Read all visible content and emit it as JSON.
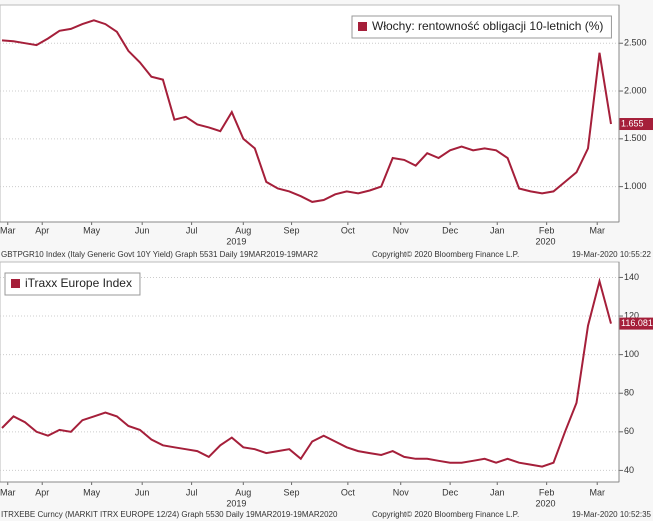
{
  "chart_data": [
    {
      "type": "line",
      "series": [
        {
          "name": "Włochy: rentowność obligacji 10-letnich (%)",
          "color": "#a51f3a",
          "values": [
            2.53,
            2.52,
            2.5,
            2.48,
            2.55,
            2.63,
            2.65,
            2.7,
            2.74,
            2.7,
            2.62,
            2.42,
            2.3,
            2.15,
            2.12,
            1.7,
            1.73,
            1.65,
            1.62,
            1.58,
            1.78,
            1.5,
            1.4,
            1.05,
            0.98,
            0.95,
            0.9,
            0.84,
            0.86,
            0.92,
            0.95,
            0.93,
            0.96,
            1.0,
            1.3,
            1.28,
            1.22,
            1.35,
            1.3,
            1.38,
            1.42,
            1.38,
            1.4,
            1.38,
            1.3,
            0.98,
            0.95,
            0.93,
            0.95,
            1.05,
            1.15,
            1.4,
            2.4,
            1.655
          ]
        }
      ],
      "last_value": 1.655,
      "xlim": [
        0,
        53
      ],
      "xticks": [
        {
          "value": 0.5,
          "label": "Mar"
        },
        {
          "value": 3.5,
          "label": "Apr"
        },
        {
          "value": 7.8,
          "label": "May"
        },
        {
          "value": 12.2,
          "label": "Jun"
        },
        {
          "value": 16.5,
          "label": "Jul"
        },
        {
          "value": 21,
          "label": "Aug"
        },
        {
          "value": 25.2,
          "label": "Sep"
        },
        {
          "value": 30.1,
          "label": "Oct"
        },
        {
          "value": 34.7,
          "label": "Nov"
        },
        {
          "value": 39,
          "label": "Dec"
        },
        {
          "value": 43.1,
          "label": "Jan"
        },
        {
          "value": 47.4,
          "label": "Feb"
        },
        {
          "value": 51.8,
          "label": "Mar"
        }
      ],
      "year_labels": [
        {
          "value": 20.4,
          "label": "2019"
        },
        {
          "value": 47.3,
          "label": "2020"
        }
      ],
      "ylim": [
        0.63,
        2.9
      ],
      "yticks": [
        {
          "value": 1,
          "label": "1.000"
        },
        {
          "value": 1.5,
          "label": "1.500"
        },
        {
          "value": 2,
          "label": "2.000"
        },
        {
          "value": 2.5,
          "label": "2.500"
        }
      ],
      "grid": true,
      "legend": "top-right",
      "source": "GBTPGR10 Index (Italy Generic Govt 10Y Yield) Graph 5531   Daily 19MAR2019-19MAR2",
      "copyright": "Copyright© 2020 Bloomberg Finance L.P.",
      "timestamp": "19-Mar-2020 10:55:22"
    },
    {
      "type": "line",
      "series": [
        {
          "name": "iTraxx Europe Index",
          "color": "#a51f3a",
          "values": [
            62,
            68,
            65,
            60,
            58,
            61,
            60,
            66,
            68,
            70,
            68,
            63,
            61,
            56,
            53,
            52,
            51,
            50,
            47,
            53,
            57,
            52,
            51,
            49,
            50,
            51,
            46,
            55,
            58,
            55,
            52,
            50,
            49,
            48,
            50,
            47,
            46,
            46,
            45,
            44,
            44,
            45,
            46,
            44,
            46,
            44,
            43,
            42,
            44,
            60,
            75,
            115,
            138,
            116.081
          ]
        }
      ],
      "last_value": 116.081,
      "xlim": [
        0,
        53
      ],
      "xticks": [
        {
          "value": 0.5,
          "label": "Mar"
        },
        {
          "value": 3.5,
          "label": "Apr"
        },
        {
          "value": 7.8,
          "label": "May"
        },
        {
          "value": 12.2,
          "label": "Jun"
        },
        {
          "value": 16.5,
          "label": "Jul"
        },
        {
          "value": 21,
          "label": "Aug"
        },
        {
          "value": 25.2,
          "label": "Sep"
        },
        {
          "value": 30.1,
          "label": "Oct"
        },
        {
          "value": 34.7,
          "label": "Nov"
        },
        {
          "value": 39,
          "label": "Dec"
        },
        {
          "value": 43.1,
          "label": "Jan"
        },
        {
          "value": 47.4,
          "label": "Feb"
        },
        {
          "value": 51.8,
          "label": "Mar"
        }
      ],
      "year_labels": [
        {
          "value": 20.4,
          "label": "2019"
        },
        {
          "value": 47.3,
          "label": "2020"
        }
      ],
      "ylim": [
        34,
        148
      ],
      "yticks": [
        40,
        60,
        80,
        100,
        120,
        140
      ],
      "grid": true,
      "legend": "top-left",
      "source": "ITRXEBE Curncy (MARKIT ITRX EUROPE 12/24) Graph 5530   Daily 19MAR2019-19MAR2020",
      "copyright": "Copyright© 2020 Bloomberg Finance L.P.",
      "timestamp": "19-Mar-2020 10:52:35"
    }
  ]
}
